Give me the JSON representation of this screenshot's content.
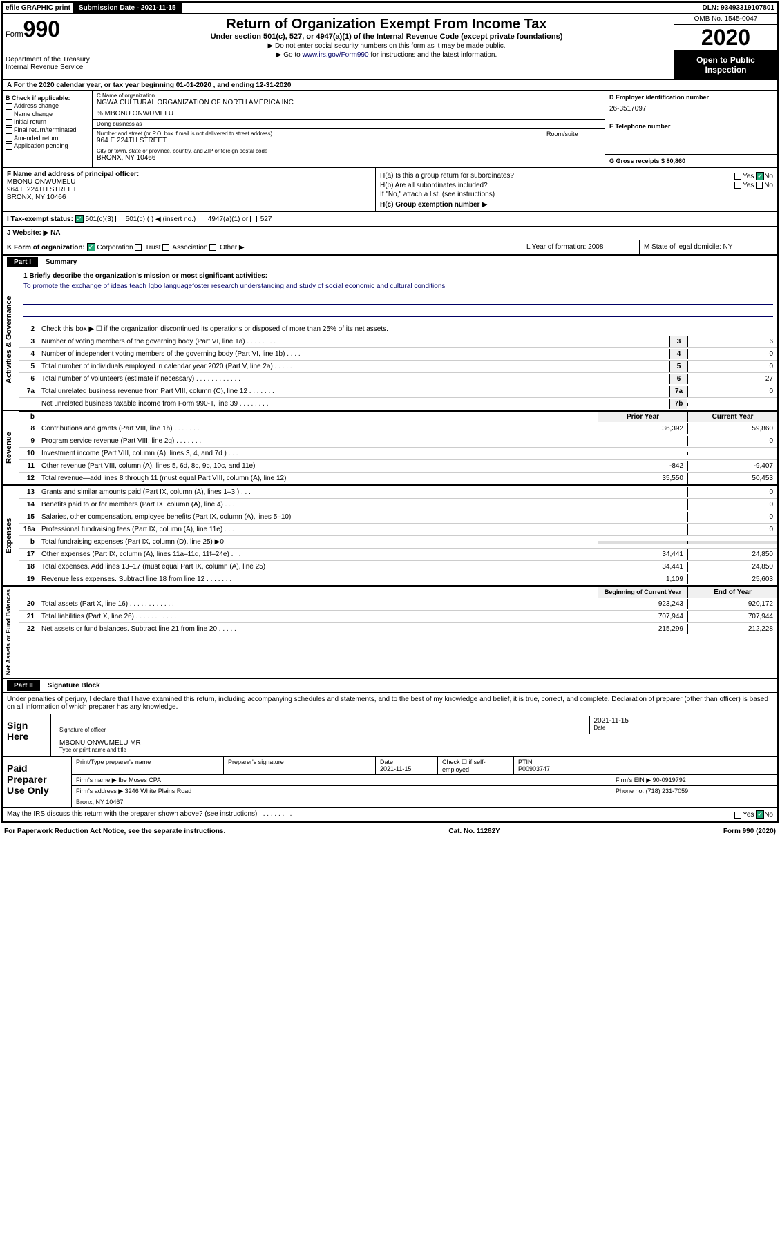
{
  "topbar": {
    "efile": "efile GRAPHIC print",
    "submission": "Submission Date - 2021-11-15",
    "dln": "DLN: 93493319107801"
  },
  "header": {
    "form_prefix": "Form",
    "form_num": "990",
    "dept": "Department of the Treasury\nInternal Revenue Service",
    "title": "Return of Organization Exempt From Income Tax",
    "subtitle": "Under section 501(c), 527, or 4947(a)(1) of the Internal Revenue Code (except private foundations)",
    "instr1": "▶ Do not enter social security numbers on this form as it may be made public.",
    "instr2_pre": "▶ Go to ",
    "instr2_link": "www.irs.gov/Form990",
    "instr2_post": " for instructions and the latest information.",
    "omb": "OMB No. 1545-0047",
    "year": "2020",
    "inspect": "Open to Public Inspection"
  },
  "row_a": "A For the 2020 calendar year, or tax year beginning 01-01-2020  , and ending 12-31-2020",
  "col_b": {
    "hdr": "B Check if applicable:",
    "items": [
      "Address change",
      "Name change",
      "Initial return",
      "Final return/terminated",
      "Amended return",
      "Application pending"
    ]
  },
  "col_c": {
    "name_lbl": "C Name of organization",
    "name": "NGWA CULTURAL ORGANIZATION OF NORTH AMERICA INC",
    "care_of": "% MBONU ONWUMELU",
    "dba_lbl": "Doing business as",
    "addr_lbl": "Number and street (or P.O. box if mail is not delivered to street address)",
    "addr": "964 E 224TH STREET",
    "room_lbl": "Room/suite",
    "city_lbl": "City or town, state or province, country, and ZIP or foreign postal code",
    "city": "BRONX, NY  10466"
  },
  "col_d": {
    "ein_lbl": "D Employer identification number",
    "ein": "26-3517097",
    "tel_lbl": "E Telephone number",
    "gross_lbl": "G Gross receipts $ 80,860"
  },
  "col_f": {
    "lbl": "F Name and address of principal officer:",
    "name": "MBONU ONWUMELU",
    "addr1": "964 E 224TH STREET",
    "addr2": "BRONX, NY  10466"
  },
  "col_h": {
    "a_lbl": "H(a)  Is this a group return for subordinates?",
    "a_yes": "Yes",
    "a_no": "No",
    "b_lbl": "H(b)  Are all subordinates included?",
    "b_note": "If \"No,\" attach a list. (see instructions)",
    "c_lbl": "H(c)  Group exemption number ▶"
  },
  "status": {
    "lbl": "I   Tax-exempt status:",
    "opts": [
      "501(c)(3)",
      "501(c) (  ) ◀ (insert no.)",
      "4947(a)(1) or",
      "527"
    ]
  },
  "row_j": "J   Website: ▶  NA",
  "row_k": {
    "k": "K Form of organization:",
    "opts": [
      "Corporation",
      "Trust",
      "Association",
      "Other ▶"
    ],
    "l": "L Year of formation: 2008",
    "m": "M State of legal domicile: NY"
  },
  "part1": "Part I",
  "part1_title": "Summary",
  "sections": {
    "gov": {
      "label": "Activities & Governance",
      "mission_lbl": "1   Briefly describe the organization's mission or most significant activities:",
      "mission": "To promote the exchange of ideas teach Igbo languagefoster research understanding and study of social economic and cultural conditions",
      "line2": "Check this box ▶ ☐  if the organization discontinued its operations or disposed of more than 25% of its net assets.",
      "lines": [
        {
          "n": "3",
          "t": "Number of voting members of the governing body (Part VI, line 1a)  .   .   .   .   .   .   .   .",
          "box": "3",
          "v": "6"
        },
        {
          "n": "4",
          "t": "Number of independent voting members of the governing body (Part VI, line 1b)  .   .   .   .",
          "box": "4",
          "v": "0"
        },
        {
          "n": "5",
          "t": "Total number of individuals employed in calendar year 2020 (Part V, line 2a)  .   .   .   .   .",
          "box": "5",
          "v": "0"
        },
        {
          "n": "6",
          "t": "Total number of volunteers (estimate if necessary)  .   .   .   .   .   .   .   .   .   .   .   .",
          "box": "6",
          "v": "27"
        },
        {
          "n": "7a",
          "t": "Total unrelated business revenue from Part VIII, column (C), line 12  .   .   .   .   .   .   .",
          "box": "7a",
          "v": "0"
        },
        {
          "n": "",
          "t": "Net unrelated business taxable income from Form 990-T, line 39  .   .   .   .   .   .   .   .",
          "box": "7b",
          "v": ""
        }
      ]
    },
    "rev": {
      "label": "Revenue",
      "col1": "Prior Year",
      "col2": "Current Year",
      "lines": [
        {
          "n": "8",
          "t": "Contributions and grants (Part VIII, line 1h)  .   .   .   .   .   .   .",
          "v1": "36,392",
          "v2": "59,860"
        },
        {
          "n": "9",
          "t": "Program service revenue (Part VIII, line 2g)  .   .   .   .   .   .   .",
          "v1": "",
          "v2": "0"
        },
        {
          "n": "10",
          "t": "Investment income (Part VIII, column (A), lines 3, 4, and 7d )  .   .   .",
          "v1": "",
          "v2": ""
        },
        {
          "n": "11",
          "t": "Other revenue (Part VIII, column (A), lines 5, 6d, 8c, 9c, 10c, and 11e)",
          "v1": "-842",
          "v2": "-9,407"
        },
        {
          "n": "12",
          "t": "Total revenue—add lines 8 through 11 (must equal Part VIII, column (A), line 12)",
          "v1": "35,550",
          "v2": "50,453"
        }
      ]
    },
    "exp": {
      "label": "Expenses",
      "lines": [
        {
          "n": "13",
          "t": "Grants and similar amounts paid (Part IX, column (A), lines 1–3 )  .   .   .",
          "v1": "",
          "v2": "0"
        },
        {
          "n": "14",
          "t": "Benefits paid to or for members (Part IX, column (A), line 4)  .   .   .",
          "v1": "",
          "v2": "0"
        },
        {
          "n": "15",
          "t": "Salaries, other compensation, employee benefits (Part IX, column (A), lines 5–10)",
          "v1": "",
          "v2": "0"
        },
        {
          "n": "16a",
          "t": "Professional fundraising fees (Part IX, column (A), line 11e)  .   .   .",
          "v1": "",
          "v2": "0"
        },
        {
          "n": "b",
          "t": "Total fundraising expenses (Part IX, column (D), line 25) ▶0",
          "v1": "",
          "v2": "",
          "shaded": true
        },
        {
          "n": "17",
          "t": "Other expenses (Part IX, column (A), lines 11a–11d, 11f–24e)  .   .   .",
          "v1": "34,441",
          "v2": "24,850"
        },
        {
          "n": "18",
          "t": "Total expenses. Add lines 13–17 (must equal Part IX, column (A), line 25)",
          "v1": "34,441",
          "v2": "24,850"
        },
        {
          "n": "19",
          "t": "Revenue less expenses. Subtract line 18 from line 12  .   .   .   .   .   .   .",
          "v1": "1,109",
          "v2": "25,603"
        }
      ]
    },
    "net": {
      "label": "Net Assets or Fund Balances",
      "col1": "Beginning of Current Year",
      "col2": "End of Year",
      "lines": [
        {
          "n": "20",
          "t": "Total assets (Part X, line 16)  .   .   .   .   .   .   .   .   .   .   .   .",
          "v1": "923,243",
          "v2": "920,172"
        },
        {
          "n": "21",
          "t": "Total liabilities (Part X, line 26)  .   .   .   .   .   .   .   .   .   .   .",
          "v1": "707,944",
          "v2": "707,944"
        },
        {
          "n": "22",
          "t": "Net assets or fund balances. Subtract line 21 from line 20  .   .   .   .   .",
          "v1": "215,299",
          "v2": "212,228"
        }
      ]
    }
  },
  "part2": "Part II",
  "part2_title": "Signature Block",
  "sig_text": "Under penalties of perjury, I declare that I have examined this return, including accompanying schedules and statements, and to the best of my knowledge and belief, it is true, correct, and complete. Declaration of preparer (other than officer) is based on all information of which preparer has any knowledge.",
  "sign": {
    "label": "Sign Here",
    "sig_of": "Signature of officer",
    "date": "2021-11-15",
    "date_lbl": "Date",
    "name": "MBONU ONWUMELU  MR",
    "name_lbl": "Type or print name and title"
  },
  "prep": {
    "label": "Paid Preparer Use Only",
    "h1": "Print/Type preparer's name",
    "h2": "Preparer's signature",
    "h3": "Date",
    "h3v": "2021-11-15",
    "h4": "Check ☐ if self-employed",
    "h5": "PTIN",
    "h5v": "P00903747",
    "firm_lbl": "Firm's name     ▶",
    "firm": "Ibe Moses CPA",
    "ein_lbl": "Firm's EIN ▶",
    "ein": "90-0919792",
    "addr_lbl": "Firm's address ▶",
    "addr1": "3246 White Plains Road",
    "addr2": "Bronx, NY  10467",
    "phone_lbl": "Phone no.",
    "phone": "(718) 231-7059"
  },
  "discuss": {
    "q": "May the IRS discuss this return with the preparer shown above? (see instructions)  .   .   .   .   .   .   .   .   .",
    "yes": "Yes",
    "no": "No"
  },
  "footer": {
    "left": "For Paperwork Reduction Act Notice, see the separate instructions.",
    "mid": "Cat. No. 11282Y",
    "right": "Form 990 (2020)"
  }
}
